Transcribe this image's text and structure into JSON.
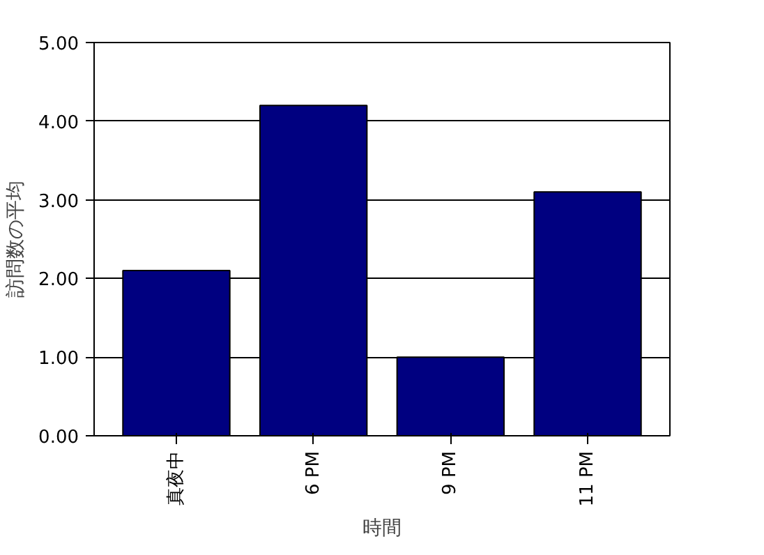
{
  "chart_data": {
    "type": "bar",
    "xlabel": "時間",
    "ylabel": "訪問数の平均",
    "categories": [
      "真夜中",
      "6 PM",
      "9 PM",
      "11 PM"
    ],
    "values": [
      2.1,
      4.2,
      1.0,
      3.1
    ],
    "color": "#000080",
    "ylim": [
      0,
      5
    ],
    "yticks": [
      {
        "value": 0,
        "label": "0.00"
      },
      {
        "value": 1,
        "label": "1.00"
      },
      {
        "value": 2,
        "label": "2.00"
      },
      {
        "value": 3,
        "label": "3.00"
      },
      {
        "value": 4,
        "label": "4.00"
      },
      {
        "value": 5,
        "label": "5.00"
      }
    ],
    "grid": "y"
  }
}
